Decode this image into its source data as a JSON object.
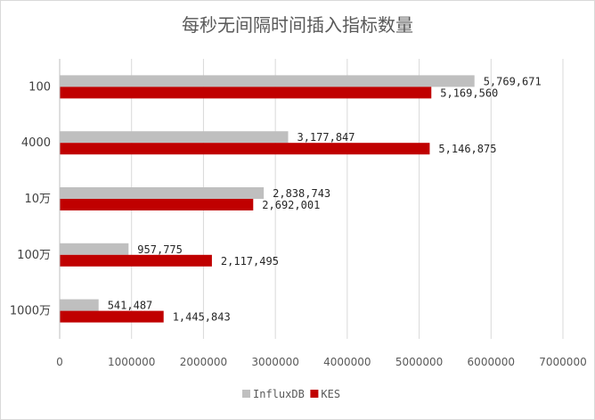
{
  "chart_data": {
    "type": "bar",
    "orientation": "horizontal",
    "title": "每秒无间隔时间插入指标数量",
    "categories": [
      "100",
      "4000",
      "10万",
      "100万",
      "1000万"
    ],
    "series": [
      {
        "name": "InfluxDB",
        "color": "#bfbfbf",
        "values": [
          5769671,
          3177847,
          2838743,
          957775,
          541487
        ],
        "labels": [
          "5,769,671",
          "3,177,847",
          "2,838,743",
          "957,775",
          "541,487"
        ]
      },
      {
        "name": "KES",
        "color": "#c00000",
        "values": [
          5169560,
          5146875,
          2692001,
          2117495,
          1445843
        ],
        "labels": [
          "5,169,560",
          "5,146,875",
          "2,692,001",
          "2,117,495",
          "1,445,843"
        ]
      }
    ],
    "xlim": [
      0,
      7000000
    ],
    "xticks": [
      "0",
      "1000000",
      "2000000",
      "3000000",
      "4000000",
      "5000000",
      "6000000",
      "7000000"
    ],
    "grid": true,
    "legend_position": "bottom"
  }
}
